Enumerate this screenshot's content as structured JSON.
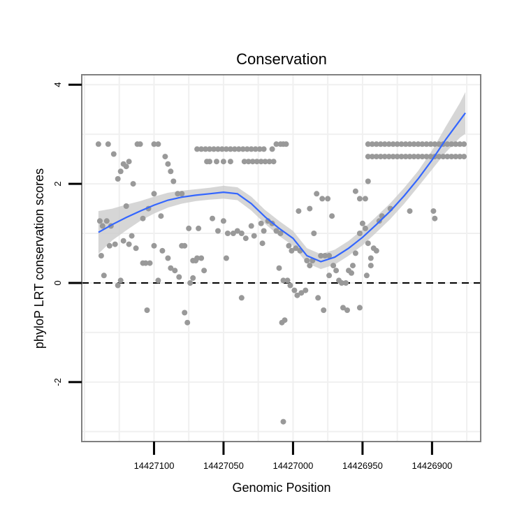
{
  "chart_data": {
    "type": "scatter",
    "title": "Conservation",
    "xlabel": "Genomic Position",
    "ylabel": "phyloP LRT conservation scores",
    "xlim": [
      14427152,
      14426865
    ],
    "ylim": [
      -3.2,
      4.2
    ],
    "x_reversed": true,
    "x_ticks": [
      14427100,
      14427050,
      14427000,
      14426950,
      14426900
    ],
    "x_tick_labels": [
      "14427100",
      "14427050",
      "14427000",
      "14426950",
      "14426900"
    ],
    "y_ticks": [
      -2,
      0,
      2,
      4
    ],
    "y_tick_labels": [
      "-2",
      "0",
      "2",
      "4"
    ],
    "grid": true,
    "reference_line": {
      "y": 0,
      "style": "dashed",
      "color": "#000000"
    },
    "colors": {
      "points": "#999999",
      "smooth": "#3366ff",
      "band": "#cccccc",
      "panel_border": "#808080",
      "grid": "#f0f0f0"
    },
    "points": [
      [
        14427140,
        2.8
      ],
      [
        14427133,
        2.8
      ],
      [
        14427129,
        2.6
      ],
      [
        14427122,
        2.4
      ],
      [
        14427118,
        2.45
      ],
      [
        14427112,
        2.8
      ],
      [
        14427110,
        2.8
      ],
      [
        14427100,
        2.8
      ],
      [
        14427097,
        2.8
      ],
      [
        14427139,
        1.25
      ],
      [
        14427137,
        1.15
      ],
      [
        14427134,
        1.25
      ],
      [
        14427131,
        1.15
      ],
      [
        14427126,
        2.1
      ],
      [
        14427124,
        2.25
      ],
      [
        14427120,
        2.35
      ],
      [
        14427115,
        2.0
      ],
      [
        14427108,
        1.3
      ],
      [
        14427104,
        1.5
      ],
      [
        14427100,
        1.8
      ],
      [
        14427095,
        1.35
      ],
      [
        14427092,
        2.55
      ],
      [
        14427090,
        2.4
      ],
      [
        14427088,
        2.25
      ],
      [
        14427086,
        2.05
      ],
      [
        14427083,
        1.8
      ],
      [
        14427080,
        1.8
      ],
      [
        14427078,
        0.75
      ],
      [
        14427075,
        1.1
      ],
      [
        14427072,
        0.45
      ],
      [
        14427069,
        0.5
      ],
      [
        14427138,
        0.55
      ],
      [
        14427136,
        0.15
      ],
      [
        14427132,
        0.75
      ],
      [
        14427128,
        0.78
      ],
      [
        14427126,
        -0.05
      ],
      [
        14427124,
        0.05
      ],
      [
        14427122,
        0.85
      ],
      [
        14427118,
        0.78
      ],
      [
        14427113,
        0.7
      ],
      [
        14427108,
        0.4
      ],
      [
        14427106,
        0.4
      ],
      [
        14427103,
        0.4
      ],
      [
        14427100,
        0.75
      ],
      [
        14427097,
        0.05
      ],
      [
        14427094,
        0.65
      ],
      [
        14427090,
        0.5
      ],
      [
        14427088,
        0.3
      ],
      [
        14427085,
        0.25
      ],
      [
        14427082,
        0.12
      ],
      [
        14427080,
        0.75
      ],
      [
        14427078,
        -0.6
      ],
      [
        14427076,
        -0.8
      ],
      [
        14427074,
        0.0
      ],
      [
        14427105,
        -0.55
      ],
      [
        14427072,
        0.1
      ],
      [
        14427070,
        0.45
      ],
      [
        14427068,
        1.1
      ],
      [
        14427066,
        0.5
      ],
      [
        14427064,
        0.25
      ],
      [
        14427120,
        1.55
      ],
      [
        14427116,
        0.95
      ],
      [
        14427069,
        2.7
      ],
      [
        14427066,
        2.7
      ],
      [
        14427063,
        2.7
      ],
      [
        14427060,
        2.7
      ],
      [
        14427057,
        2.7
      ],
      [
        14427054,
        2.7
      ],
      [
        14427051,
        2.7
      ],
      [
        14427048,
        2.7
      ],
      [
        14427045,
        2.7
      ],
      [
        14427042,
        2.7
      ],
      [
        14427039,
        2.7
      ],
      [
        14427036,
        2.7
      ],
      [
        14427033,
        2.7
      ],
      [
        14427030,
        2.7
      ],
      [
        14427027,
        2.7
      ],
      [
        14427024,
        2.7
      ],
      [
        14427021,
        2.7
      ],
      [
        14427015,
        2.7
      ],
      [
        14427012,
        2.8
      ],
      [
        14427009,
        2.8
      ],
      [
        14427007,
        2.8
      ],
      [
        14427005,
        2.8
      ],
      [
        14427062,
        2.45
      ],
      [
        14427060,
        2.45
      ],
      [
        14427055,
        2.45
      ],
      [
        14427050,
        2.45
      ],
      [
        14427045,
        2.45
      ],
      [
        14427035,
        2.45
      ],
      [
        14427032,
        2.45
      ],
      [
        14427029,
        2.45
      ],
      [
        14427026,
        2.45
      ],
      [
        14427023,
        2.45
      ],
      [
        14427020,
        2.45
      ],
      [
        14427017,
        2.45
      ],
      [
        14427014,
        2.45
      ],
      [
        14427058,
        1.3
      ],
      [
        14427054,
        1.05
      ],
      [
        14427050,
        1.25
      ],
      [
        14427047,
        1.0
      ],
      [
        14427043,
        1.0
      ],
      [
        14427040,
        1.05
      ],
      [
        14427037,
        1.0
      ],
      [
        14427034,
        0.9
      ],
      [
        14427028,
        0.95
      ],
      [
        14427023,
        1.2
      ],
      [
        14427021,
        1.05
      ],
      [
        14427018,
        1.25
      ],
      [
        14427015,
        1.2
      ],
      [
        14427012,
        1.05
      ],
      [
        14427009,
        1.0
      ],
      [
        14427048,
        0.5
      ],
      [
        14427037,
        -0.3
      ],
      [
        14427030,
        1.15
      ],
      [
        14427022,
        0.8
      ],
      [
        14427010,
        0.3
      ],
      [
        14427007,
        0.05
      ],
      [
        14427004,
        0.05
      ],
      [
        14427002,
        -0.05
      ],
      [
        14426999,
        -0.15
      ],
      [
        14426997,
        -0.25
      ],
      [
        14426994,
        -0.2
      ],
      [
        14426991,
        -0.15
      ],
      [
        14427008,
        -0.8
      ],
      [
        14427006,
        -0.75
      ],
      [
        14427003,
        0.75
      ],
      [
        14427001,
        0.65
      ],
      [
        14426998,
        0.7
      ],
      [
        14426995,
        0.65
      ],
      [
        14426990,
        0.45
      ],
      [
        14426988,
        0.35
      ],
      [
        14426986,
        0.45
      ],
      [
        14426982,
        -0.3
      ],
      [
        14426978,
        -0.55
      ],
      [
        14427007,
        -2.8
      ],
      [
        14426996,
        1.45
      ],
      [
        14426988,
        1.5
      ],
      [
        14426983,
        1.8
      ],
      [
        14426979,
        1.7
      ],
      [
        14426975,
        1.7
      ],
      [
        14426972,
        1.35
      ],
      [
        14426985,
        1.0
      ],
      [
        14426980,
        0.55
      ],
      [
        14426977,
        0.55
      ],
      [
        14426974,
        0.55
      ],
      [
        14426971,
        0.35
      ],
      [
        14426969,
        0.25
      ],
      [
        14426967,
        0.05
      ],
      [
        14426965,
        0.0
      ],
      [
        14426962,
        0.0
      ],
      [
        14426960,
        0.25
      ],
      [
        14426958,
        0.2
      ],
      [
        14426964,
        -0.5
      ],
      [
        14426961,
        -0.55
      ],
      [
        14426952,
        -0.5
      ],
      [
        14426974,
        0.15
      ],
      [
        14426957,
        0.35
      ],
      [
        14426955,
        0.6
      ],
      [
        14426952,
        1.0
      ],
      [
        14426950,
        1.2
      ],
      [
        14426948,
        1.1
      ],
      [
        14426946,
        0.8
      ],
      [
        14426944,
        0.5
      ],
      [
        14426942,
        0.7
      ],
      [
        14426940,
        0.65
      ],
      [
        14426938,
        1.25
      ],
      [
        14426936,
        1.35
      ],
      [
        14426955,
        1.85
      ],
      [
        14426952,
        1.7
      ],
      [
        14426948,
        1.7
      ],
      [
        14426946,
        2.05
      ],
      [
        14426947,
        0.15
      ],
      [
        14426944,
        0.35
      ],
      [
        14426930,
        1.5
      ],
      [
        14426916,
        1.45
      ],
      [
        14426946,
        2.8
      ],
      [
        14426943,
        2.8
      ],
      [
        14426940,
        2.8
      ],
      [
        14426937,
        2.8
      ],
      [
        14426934,
        2.8
      ],
      [
        14426931,
        2.8
      ],
      [
        14426928,
        2.8
      ],
      [
        14426925,
        2.8
      ],
      [
        14426922,
        2.8
      ],
      [
        14426919,
        2.8
      ],
      [
        14426916,
        2.8
      ],
      [
        14426913,
        2.8
      ],
      [
        14426910,
        2.8
      ],
      [
        14426907,
        2.8
      ],
      [
        14426904,
        2.8
      ],
      [
        14426901,
        2.8
      ],
      [
        14426898,
        2.8
      ],
      [
        14426895,
        2.8
      ],
      [
        14426892,
        2.8
      ],
      [
        14426889,
        2.8
      ],
      [
        14426886,
        2.8
      ],
      [
        14426883,
        2.8
      ],
      [
        14426880,
        2.8
      ],
      [
        14426877,
        2.8
      ],
      [
        14426946,
        2.55
      ],
      [
        14426943,
        2.55
      ],
      [
        14426940,
        2.55
      ],
      [
        14426937,
        2.55
      ],
      [
        14426934,
        2.55
      ],
      [
        14426931,
        2.55
      ],
      [
        14426928,
        2.55
      ],
      [
        14426925,
        2.55
      ],
      [
        14426922,
        2.55
      ],
      [
        14426919,
        2.55
      ],
      [
        14426916,
        2.55
      ],
      [
        14426913,
        2.55
      ],
      [
        14426910,
        2.55
      ],
      [
        14426907,
        2.55
      ],
      [
        14426904,
        2.55
      ],
      [
        14426901,
        2.55
      ],
      [
        14426898,
        2.55
      ],
      [
        14426895,
        2.55
      ],
      [
        14426892,
        2.55
      ],
      [
        14426889,
        2.55
      ],
      [
        14426886,
        2.55
      ],
      [
        14426883,
        2.55
      ],
      [
        14426880,
        2.55
      ],
      [
        14426877,
        2.55
      ],
      [
        14426899,
        1.45
      ],
      [
        14426898,
        1.3
      ]
    ],
    "smooth": {
      "x": [
        14427140,
        14427130,
        14427120,
        14427110,
        14427100,
        14427090,
        14427080,
        14427070,
        14427060,
        14427050,
        14427040,
        14427030,
        14427020,
        14427010,
        14427000,
        14426990,
        14426980,
        14426970,
        14426960,
        14426950,
        14426940,
        14426930,
        14426920,
        14426910,
        14426900,
        14426890,
        14426880,
        14426876
      ],
      "y": [
        1.02,
        1.18,
        1.32,
        1.45,
        1.57,
        1.67,
        1.73,
        1.77,
        1.8,
        1.83,
        1.8,
        1.6,
        1.33,
        1.1,
        0.9,
        0.55,
        0.43,
        0.52,
        0.7,
        0.92,
        1.18,
        1.45,
        1.76,
        2.1,
        2.48,
        2.9,
        3.28,
        3.43
      ],
      "se": [
        0.43,
        0.32,
        0.26,
        0.2,
        0.17,
        0.15,
        0.13,
        0.12,
        0.12,
        0.13,
        0.13,
        0.14,
        0.14,
        0.15,
        0.15,
        0.15,
        0.15,
        0.15,
        0.15,
        0.16,
        0.16,
        0.16,
        0.16,
        0.16,
        0.19,
        0.26,
        0.35,
        0.42
      ]
    }
  }
}
